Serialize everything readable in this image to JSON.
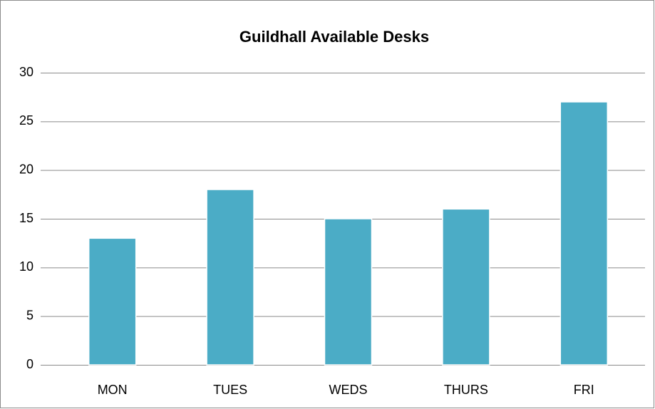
{
  "chart_data": {
    "type": "bar",
    "title": "Guildhall Available Desks",
    "categories": [
      "MON",
      "TUES",
      "WEDS",
      "THURS",
      "FRI"
    ],
    "values": [
      13,
      18,
      15,
      16,
      27
    ],
    "color": "#4bacc6",
    "ylim": [
      0,
      30
    ],
    "yticks": [
      0,
      5,
      10,
      15,
      20,
      25,
      30
    ],
    "grid": true
  }
}
